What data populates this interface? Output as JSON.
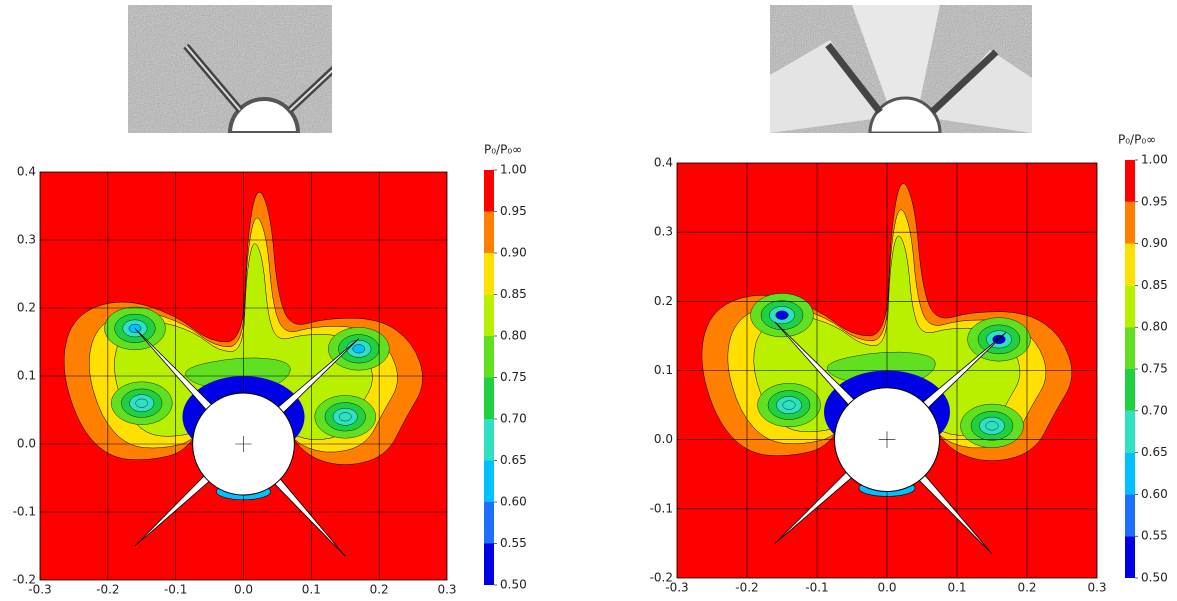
{
  "chart_data": [
    {
      "type": "contour",
      "xlim": [
        -0.3,
        0.3
      ],
      "ylim": [
        -0.2,
        0.4
      ],
      "xticks": [
        -0.3,
        -0.2,
        -0.1,
        {
          "value": 0,
          "label": "0.0"
        },
        0.1,
        0.2,
        0.3
      ],
      "yticks": [
        -0.2,
        -0.1,
        {
          "value": 0,
          "label": "0.0"
        },
        0.1,
        0.2,
        0.3,
        0.4
      ],
      "grid": true,
      "colorbar": {
        "title": "P₀/P₀∞",
        "ticks": [
          {
            "value": 0.5,
            "label": "0.50"
          },
          0.55,
          {
            "value": 0.6,
            "label": "0.60"
          },
          0.65,
          {
            "value": 0.7,
            "label": "0.70"
          },
          0.75,
          {
            "value": 0.8,
            "label": "0.80"
          },
          0.85,
          {
            "value": 0.9,
            "label": "0.90"
          },
          0.95,
          {
            "value": 1,
            "label": "1.00"
          }
        ],
        "colors": [
          "#0000e6",
          "#1e6eff",
          "#00c0ff",
          "#30e0c0",
          "#20d040",
          "#60e020",
          "#b8f000",
          "#ffe000",
          "#ff8000",
          "#ff0000"
        ]
      }
    },
    {
      "type": "contour",
      "xlim": [
        -0.3,
        0.3
      ],
      "ylim": [
        -0.2,
        0.4
      ],
      "xticks": [
        -0.3,
        -0.2,
        -0.1,
        {
          "value": 0,
          "label": "0.0"
        },
        0.1,
        0.2,
        0.3
      ],
      "yticks": [
        -0.2,
        -0.1,
        {
          "value": 0,
          "label": "0.0"
        },
        0.1,
        0.2,
        0.3,
        0.4
      ],
      "grid": true,
      "colorbar": {
        "title": "P₀/P₀∞",
        "ticks": [
          {
            "value": 0.5,
            "label": "0.50"
          },
          0.55,
          {
            "value": 0.6,
            "label": "0.60"
          },
          0.65,
          {
            "value": 0.7,
            "label": "0.70"
          },
          0.75,
          {
            "value": 0.8,
            "label": "0.80"
          },
          0.85,
          {
            "value": 0.9,
            "label": "0.90"
          },
          0.95,
          {
            "value": 1,
            "label": "1.00"
          }
        ],
        "colors": [
          "#0000e6",
          "#1e6eff",
          "#00c0ff",
          "#30e0c0",
          "#20d040",
          "#60e020",
          "#b8f000",
          "#ffe000",
          "#ff8000",
          "#ff0000"
        ]
      }
    }
  ]
}
